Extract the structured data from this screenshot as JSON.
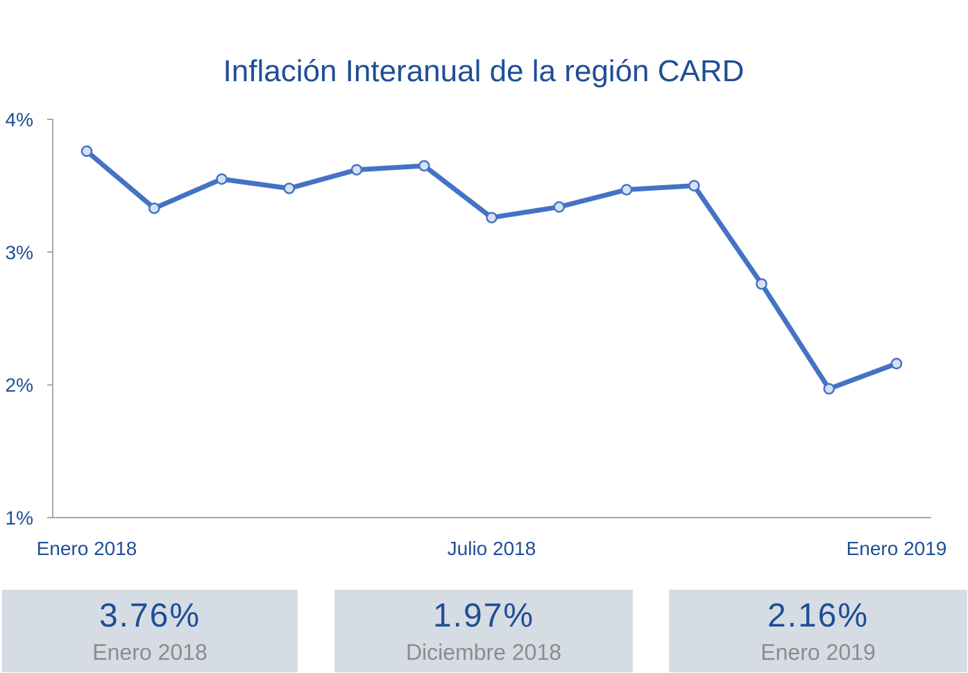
{
  "chart_data": {
    "type": "line",
    "title": "Inflación Interanual de la región CARD",
    "xlabel": "",
    "ylabel": "",
    "x_tick_labels": [
      "Enero 2018",
      "Julio 2018",
      "Enero 2019"
    ],
    "x_tick_indices": [
      0,
      6,
      12
    ],
    "y_ticks": [
      1,
      2,
      3,
      4
    ],
    "y_tick_labels": [
      "1%",
      "2%",
      "3%",
      "4%"
    ],
    "ylim": [
      1,
      4
    ],
    "grid": false,
    "legend": "none",
    "series": [
      {
        "values": [
          3.76,
          3.33,
          3.55,
          3.48,
          3.62,
          3.65,
          3.26,
          3.34,
          3.47,
          3.5,
          2.76,
          1.97,
          2.16
        ]
      }
    ],
    "colors": {
      "line": "#4472c4",
      "marker_fill": "#d6e1f3",
      "axis": "#a6a6a6",
      "text": "#1f4e96"
    }
  },
  "stats": [
    {
      "value": "3.76%",
      "label": "Enero 2018"
    },
    {
      "value": "1.97%",
      "label": "Diciembre 2018"
    },
    {
      "value": "2.16%",
      "label": "Enero 2019"
    }
  ],
  "colors": {
    "stat_bg": "#d6dce4",
    "stat_value": "#1f4e96",
    "stat_label": "#8c8c8c"
  }
}
